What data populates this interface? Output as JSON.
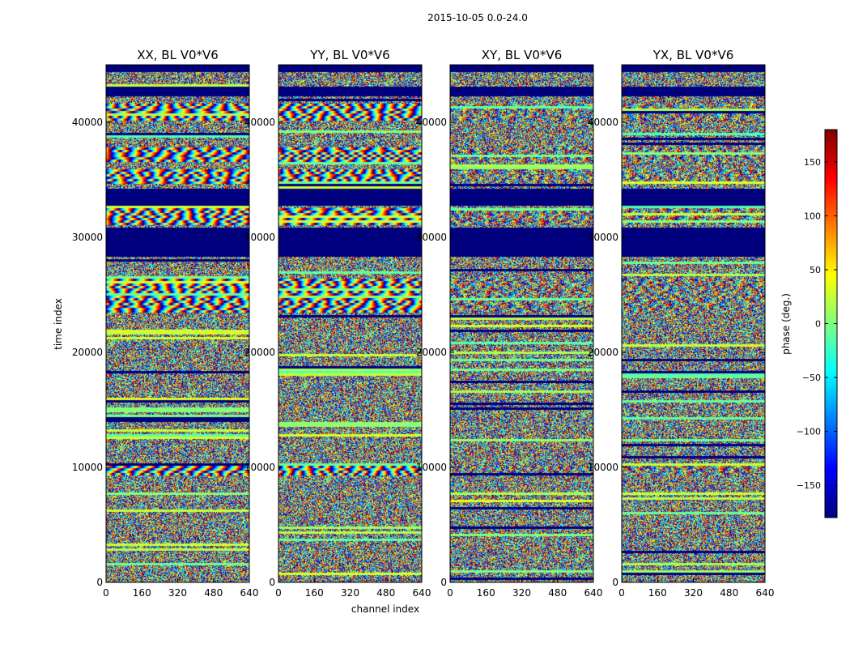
{
  "chart_data": {
    "type": "heatmap",
    "suptitle": "2015-10-05 0.0-24.0",
    "panels": [
      {
        "title": "XX, BL V0*V6",
        "pol": "XX",
        "fringe_strength": 1.0
      },
      {
        "title": "YY, BL V0*V6",
        "pol": "YY",
        "fringe_strength": 1.0
      },
      {
        "title": "XY, BL V0*V6",
        "pol": "XY",
        "fringe_strength": 0.35
      },
      {
        "title": "YX, BL V0*V6",
        "pol": "YX",
        "fringe_strength": 0.35
      }
    ],
    "xlabel": "channel index",
    "ylabel": "time index",
    "xlim": [
      0,
      640
    ],
    "ylim": [
      0,
      45000
    ],
    "x_ticks": [
      0,
      160,
      320,
      480,
      640
    ],
    "x_tick_labels": [
      "0",
      "160",
      "320",
      "480",
      "640"
    ],
    "y_ticks": [
      0,
      10000,
      20000,
      30000,
      40000
    ],
    "y_tick_labels": [
      "0",
      "10000",
      "20000",
      "30000",
      "40000"
    ],
    "flagged_time_ranges": [
      [
        28400,
        31000
      ],
      [
        32900,
        34400
      ],
      [
        42300,
        43100
      ],
      [
        44500,
        45000
      ]
    ],
    "coherent_fringe_ranges": [
      [
        9300,
        10200
      ],
      [
        23500,
        26500
      ],
      [
        31200,
        32700
      ],
      [
        34800,
        36000
      ],
      [
        36600,
        38000
      ],
      [
        40300,
        41800
      ]
    ],
    "colorbar": {
      "label": "phase (deg.)",
      "colormap": "jet",
      "range": [
        -180,
        180
      ],
      "ticks": [
        -150,
        -100,
        -50,
        0,
        50,
        100,
        150
      ],
      "tick_labels": [
        "−150",
        "−100",
        "−50",
        "0",
        "50",
        "100",
        "150"
      ]
    },
    "colors": {
      "flagged": "#00007f",
      "jet": [
        "#00007f",
        "#0000ff",
        "#007fff",
        "#00ffff",
        "#7fff7f",
        "#ffff00",
        "#ff7f00",
        "#ff0000",
        "#7f0000"
      ]
    }
  }
}
